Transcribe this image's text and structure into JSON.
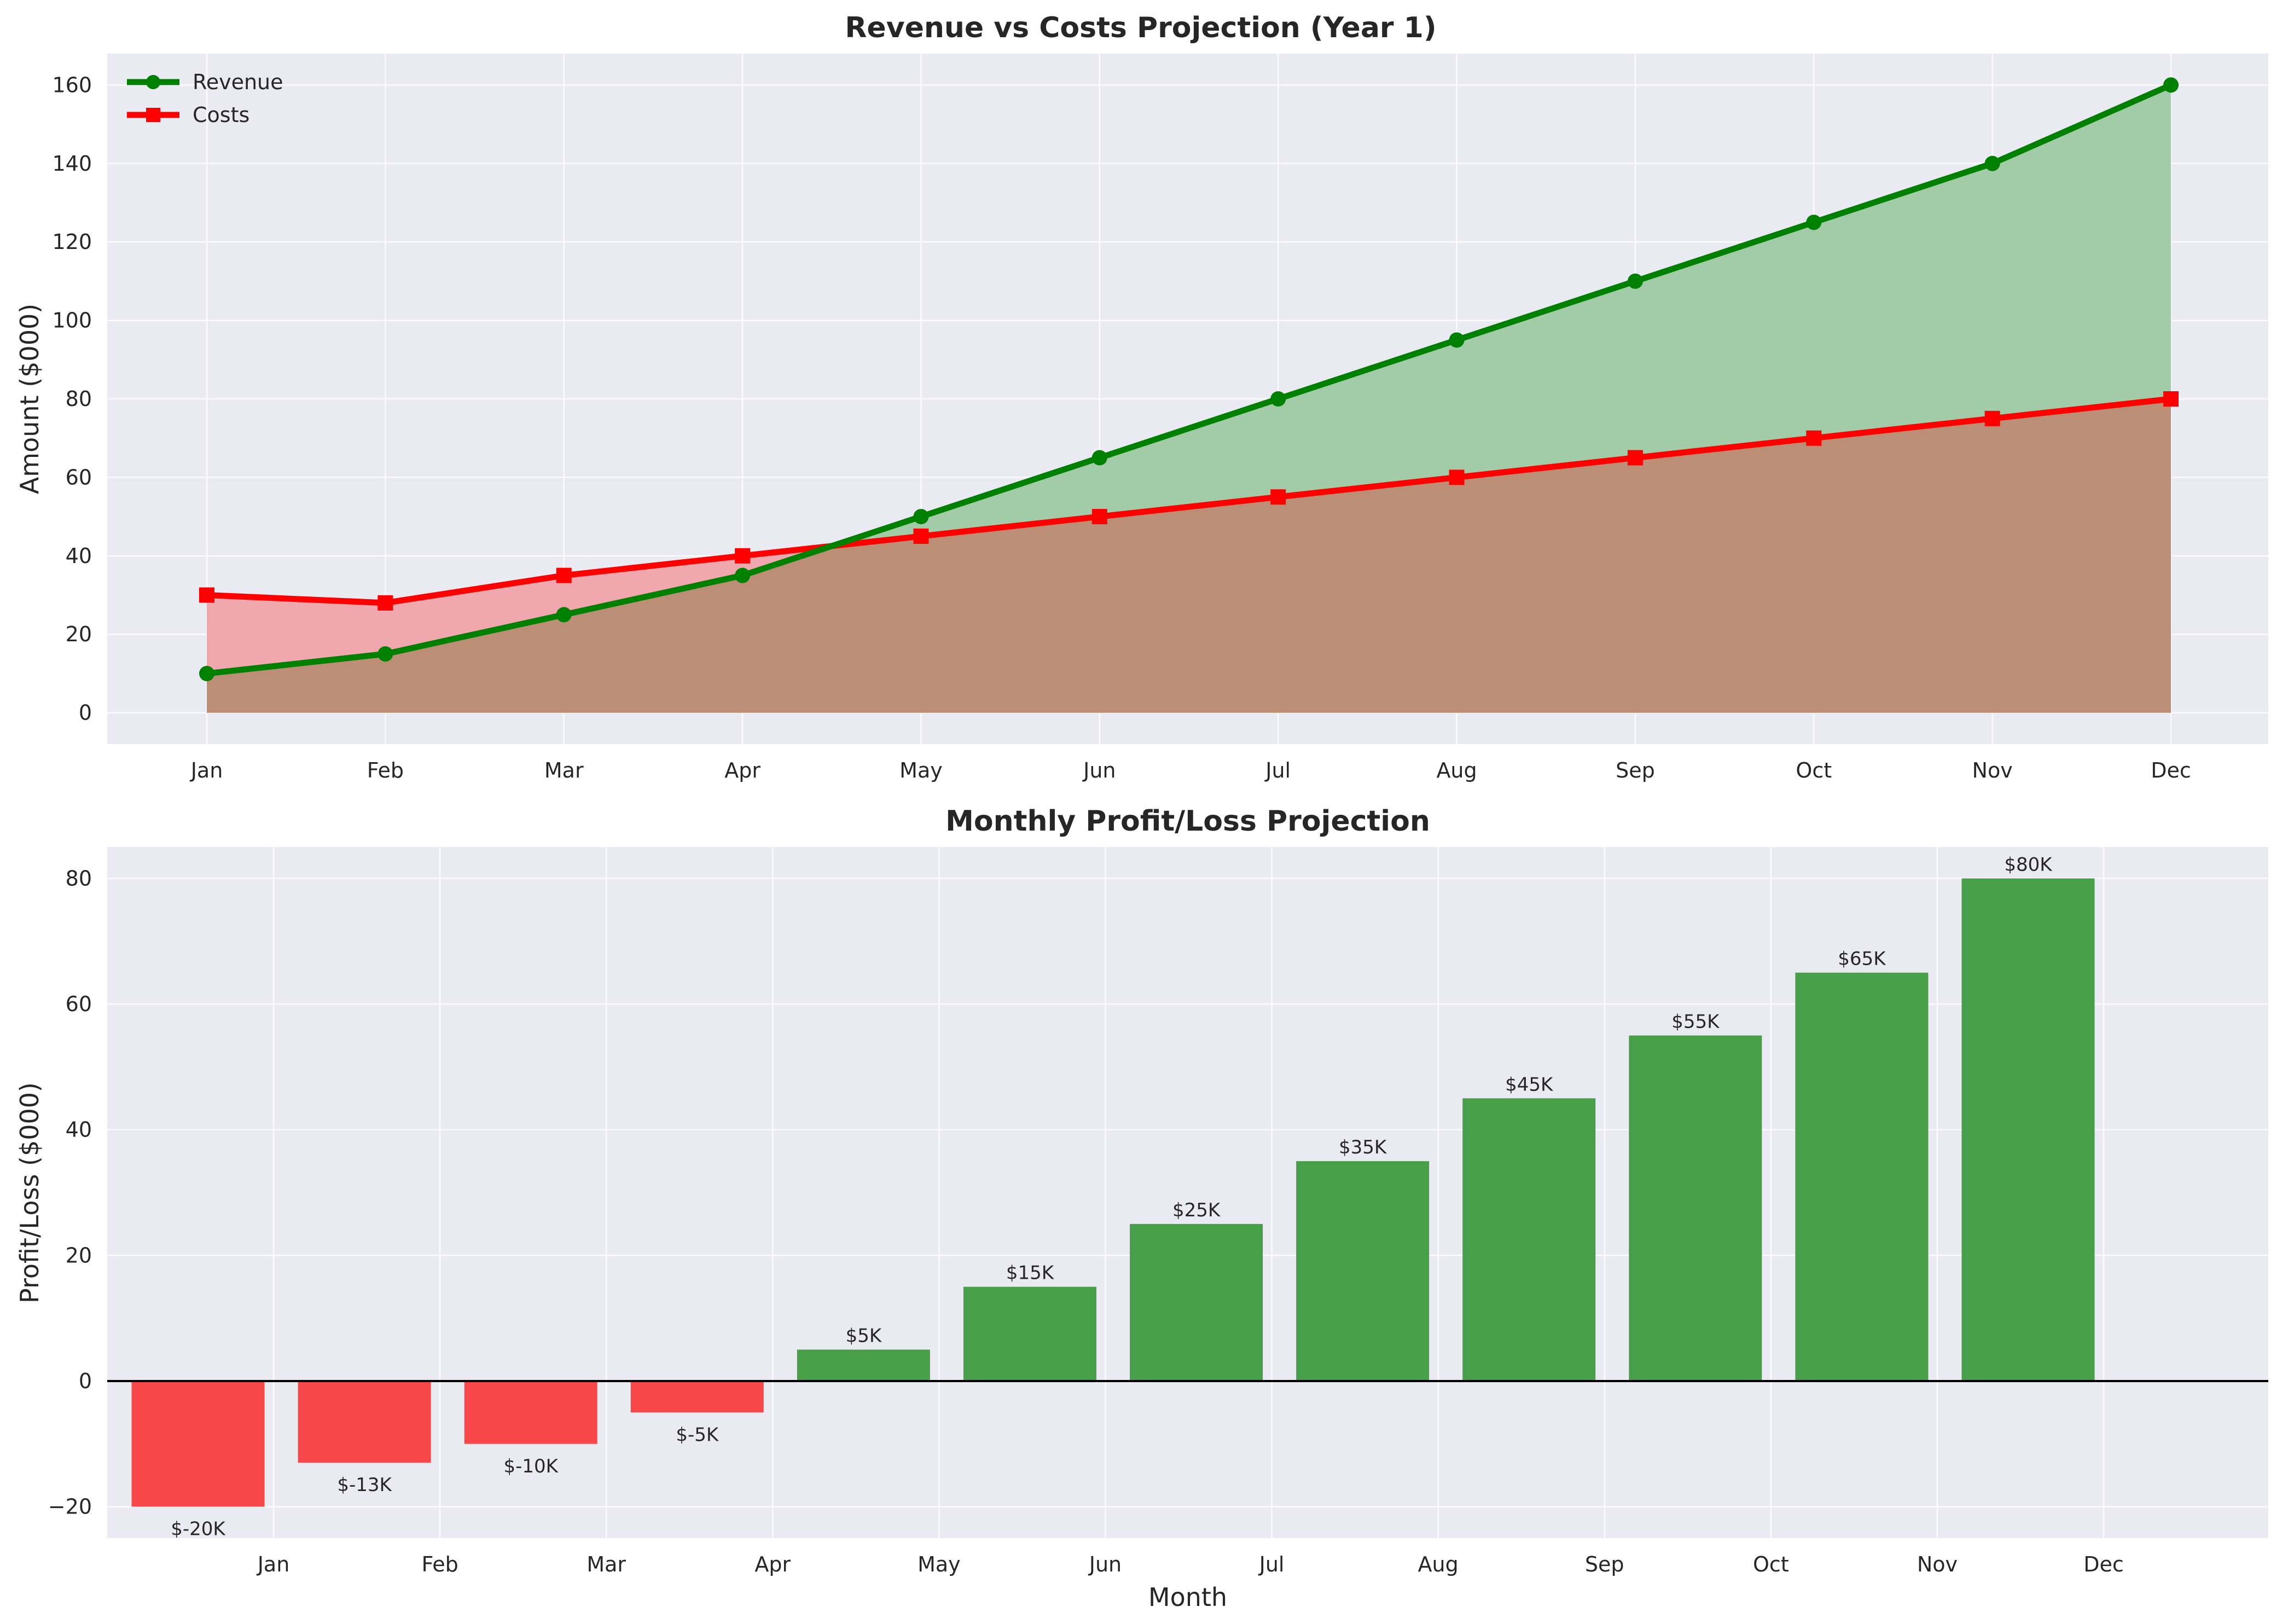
{
  "chart_data": [
    {
      "type": "line",
      "title": "Revenue vs Costs Projection (Year 1)",
      "xlabel": "",
      "ylabel": "Amount ($000)",
      "categories": [
        "Jan",
        "Feb",
        "Mar",
        "Apr",
        "May",
        "Jun",
        "Jul",
        "Aug",
        "Sep",
        "Oct",
        "Nov",
        "Dec"
      ],
      "series": [
        {
          "name": "Revenue",
          "values": [
            10,
            15,
            25,
            35,
            50,
            65,
            80,
            95,
            110,
            125,
            140,
            160
          ],
          "color": "#008000",
          "fill": "#a2cba7",
          "marker": "circle"
        },
        {
          "name": "Costs",
          "values": [
            30,
            28,
            35,
            40,
            45,
            50,
            55,
            60,
            65,
            70,
            75,
            80
          ],
          "color": "#ff0000",
          "fill": "#f0a7ad",
          "marker": "square"
        }
      ],
      "overlap_fill": "#bb8e75",
      "yticks": [
        0,
        20,
        40,
        60,
        80,
        100,
        120,
        140,
        160
      ],
      "ylim": [
        -8,
        168
      ],
      "grid": true,
      "legend": "top-left",
      "filled_area": true
    },
    {
      "type": "bar",
      "title": "Monthly Profit/Loss Projection",
      "xlabel": "Month",
      "ylabel": "Profit/Loss ($000)",
      "categories": [
        "Jan",
        "Feb",
        "Mar",
        "Apr",
        "May",
        "Jun",
        "Jul",
        "Aug",
        "Sep",
        "Oct",
        "Nov",
        "Dec"
      ],
      "values": [
        -20,
        -13,
        -10,
        -5,
        5,
        15,
        25,
        35,
        45,
        55,
        65,
        80
      ],
      "data_labels": [
        "$-20K",
        "$-13K",
        "$-10K",
        "$-5K",
        "$5K",
        "$15K",
        "$25K",
        "$35K",
        "$45K",
        "$55K",
        "$65K",
        "$80K"
      ],
      "positive_color": "#47a048",
      "negative_color": "#f84749",
      "yticks": [
        -20,
        0,
        20,
        40,
        60,
        80
      ],
      "ylim": [
        -25,
        85
      ],
      "zero_line": true,
      "grid": true
    }
  ]
}
